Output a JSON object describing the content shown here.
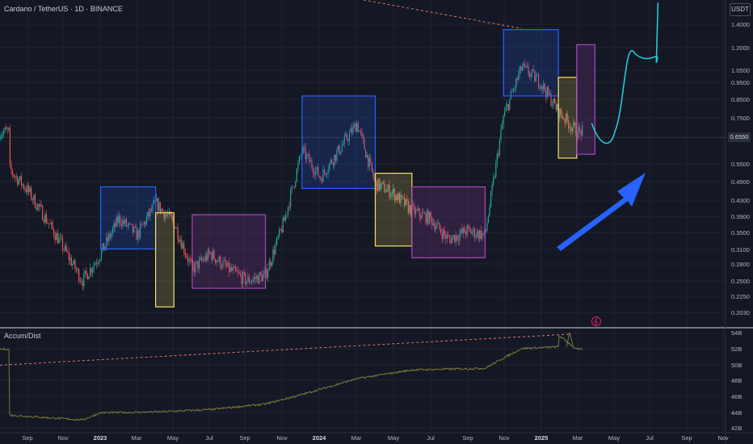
{
  "header": {
    "title": "Cardano / TetherUS · 1D · BINANCE",
    "currency": "USDT"
  },
  "indicator": {
    "label": "Accum/Dist"
  },
  "colors": {
    "background": "#141824",
    "grid": "#1e2330",
    "bull": "#26a69a",
    "bear": "#ef5350",
    "blue_box": "#2962ff",
    "yellow_box": "#f6e05e",
    "purple_box": "#ab47bc",
    "projection": "#26c6da",
    "arrow": "#2962ff",
    "trendline": "#e57373",
    "ad_line": "#7d7a3a"
  },
  "chart_data": [
    {
      "type": "line",
      "title": "Cardano / TetherUS · 1D · BINANCE",
      "y_scale": "log",
      "currency": "USDT",
      "ylim": [
        0.19,
        1.65
      ],
      "y_ticks": [
        "1.4000",
        "1.2000",
        "1.0500",
        "0.9500",
        "0.8500",
        "0.7500",
        "0.6550",
        "0.5500",
        "0.4900",
        "0.4300",
        "0.3900",
        "0.3500",
        "0.3100",
        "0.2800",
        "0.2500",
        "0.2250",
        "0.2030"
      ],
      "x_ticks": [
        "Sep",
        "Nov",
        "2023",
        "Mar",
        "May",
        "Jul",
        "Sep",
        "Nov",
        "2024",
        "Mar",
        "May",
        "Jul",
        "Sep",
        "Nov",
        "2025",
        "Mar",
        "May",
        "Jul",
        "Sep",
        "Nov"
      ],
      "current_price": 0.655,
      "series": [
        {
          "values_approx_by_month": [
            [
              "2022-08",
              0.53
            ],
            [
              "2022-09",
              0.46
            ],
            [
              "2022-10",
              0.38
            ],
            [
              "2022-11",
              0.31
            ],
            [
              "2022-12",
              0.25
            ],
            [
              "2023-01",
              0.3
            ],
            [
              "2023-02",
              0.38
            ],
            [
              "2023-03",
              0.34
            ],
            [
              "2023-04",
              0.42
            ],
            [
              "2023-05",
              0.37
            ],
            [
              "2023-06",
              0.27
            ],
            [
              "2023-07",
              0.3
            ],
            [
              "2023-08",
              0.27
            ],
            [
              "2023-09",
              0.25
            ],
            [
              "2023-10",
              0.26
            ],
            [
              "2023-11",
              0.37
            ],
            [
              "2023-12",
              0.6
            ],
            [
              "2024-01",
              0.5
            ],
            [
              "2024-02",
              0.6
            ],
            [
              "2024-03",
              0.72
            ],
            [
              "2024-04",
              0.48
            ],
            [
              "2024-05",
              0.45
            ],
            [
              "2024-06",
              0.4
            ],
            [
              "2024-07",
              0.38
            ],
            [
              "2024-08",
              0.33
            ],
            [
              "2024-09",
              0.35
            ],
            [
              "2024-10",
              0.34
            ],
            [
              "2024-11",
              0.75
            ],
            [
              "2024-12",
              1.05
            ],
            [
              "2025-01",
              0.95
            ],
            [
              "2025-02",
              0.78
            ],
            [
              "2025-03",
              0.68
            ]
          ]
        }
      ],
      "annotations": [
        {
          "kind": "box",
          "color": "blue",
          "from": "2023-01",
          "to": "2023-04",
          "low": 0.31,
          "high": 0.47
        },
        {
          "kind": "box",
          "color": "yellow",
          "from": "2023-04",
          "to": "2023-05",
          "low": 0.21,
          "high": 0.395
        },
        {
          "kind": "box",
          "color": "purple",
          "from": "2023-06",
          "to": "2023-10",
          "low": 0.238,
          "high": 0.39
        },
        {
          "kind": "box",
          "color": "blue",
          "from": "2023-12",
          "to": "2024-04",
          "low": 0.465,
          "high": 0.865
        },
        {
          "kind": "box",
          "color": "yellow",
          "from": "2024-04",
          "to": "2024-06",
          "low": 0.316,
          "high": 0.515
        },
        {
          "kind": "box",
          "color": "purple",
          "from": "2024-06",
          "to": "2024-10",
          "low": 0.292,
          "high": 0.47
        },
        {
          "kind": "box",
          "color": "blue",
          "from": "2024-11",
          "to": "2025-02",
          "low": 0.865,
          "high": 1.35
        },
        {
          "kind": "box",
          "color": "yellow",
          "from": "2025-02",
          "to": "2025-03",
          "low": 0.57,
          "high": 0.98
        },
        {
          "kind": "box",
          "color": "purple",
          "from": "2025-03",
          "to": "2025-04",
          "low": 0.585,
          "high": 1.22
        },
        {
          "kind": "projection",
          "path": [
            [
              "2025-04",
              0.72
            ],
            [
              "2025-05",
              0.66
            ],
            [
              "2025-06",
              1.1
            ],
            [
              "2025-07",
              1.15
            ],
            [
              "2025-07",
              1.6
            ]
          ]
        },
        {
          "kind": "arrow",
          "direction": "up-right"
        },
        {
          "kind": "trendline",
          "from": [
            "2024-02",
            1.9
          ],
          "to": [
            "2024-12",
            1.36
          ]
        }
      ]
    },
    {
      "type": "line",
      "title": "Accum/Dist",
      "ylim": [
        42,
        54
      ],
      "y_ticks": [
        "54B",
        "52B",
        "50B",
        "48B",
        "46B",
        "44B",
        "42B"
      ],
      "unit": "B",
      "series": [
        {
          "values_approx_by_month": [
            [
              "2022-08",
              43.6
            ],
            [
              "2022-10",
              43.3
            ],
            [
              "2022-12",
              43.0
            ],
            [
              "2023-01",
              43.9
            ],
            [
              "2023-04",
              44.0
            ],
            [
              "2023-07",
              44.3
            ],
            [
              "2023-10",
              45.0
            ],
            [
              "2023-12",
              46.2
            ],
            [
              "2024-03",
              48.2
            ],
            [
              "2024-06",
              49.3
            ],
            [
              "2024-10",
              49.5
            ],
            [
              "2024-11",
              50.8
            ],
            [
              "2024-12",
              52.0
            ],
            [
              "2025-02",
              52.2
            ],
            [
              "2025-02",
              53.7
            ],
            [
              "2025-03",
              51.9
            ]
          ]
        }
      ],
      "annotations": [
        {
          "kind": "trendline",
          "from": [
            "2022-08",
            49.9
          ],
          "to": [
            "2025-02",
            53.8
          ]
        }
      ]
    }
  ]
}
